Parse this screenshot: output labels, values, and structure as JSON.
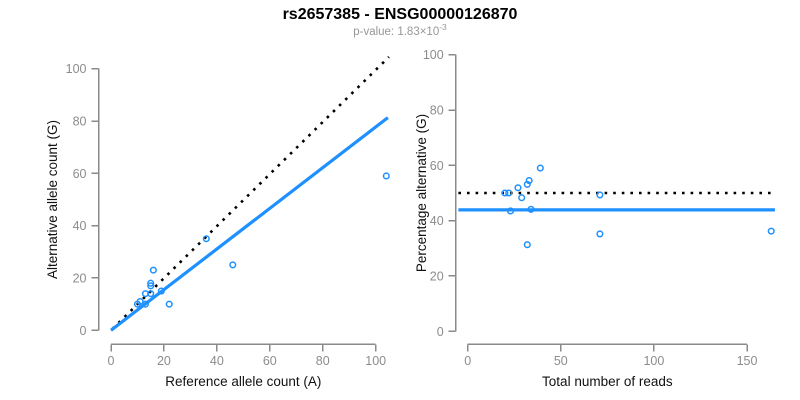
{
  "header": {
    "title": "rs2657385 - ENSG00000126870",
    "subtitle_text": "p-value: 1.83×10",
    "subtitle_exponent": "-3"
  },
  "colors": {
    "accent_blue": "#1E90FF",
    "line_black": "#000000",
    "axis_gray": "#8a8a8a",
    "tick_label_gray": "#8c8c8c",
    "subtitle_gray": "#979797"
  },
  "chart_data": [
    {
      "name": "allele-count-scatter",
      "type": "scatter",
      "xlabel": "Reference allele count (A)",
      "ylabel": "Alternative allele count (G)",
      "xlim": [
        0,
        105
      ],
      "ylim": [
        0,
        105
      ],
      "x_ticks": [
        0,
        20,
        40,
        60,
        80,
        100
      ],
      "y_ticks": [
        0,
        20,
        40,
        60,
        80,
        100
      ],
      "grid": false,
      "legend_position": "none",
      "points": [
        [
          10,
          10
        ],
        [
          11,
          11
        ],
        [
          13,
          10
        ],
        [
          13,
          14
        ],
        [
          15,
          14
        ],
        [
          15,
          17
        ],
        [
          15,
          18
        ],
        [
          16,
          23
        ],
        [
          19,
          15
        ],
        [
          22,
          10
        ],
        [
          36,
          35
        ],
        [
          46,
          25
        ],
        [
          104,
          59
        ]
      ],
      "lines": [
        {
          "name": "identity-line",
          "style": "dotted",
          "color": "#000000",
          "x1": 0.5,
          "y1": 0.5,
          "x2": 105,
          "y2": 104.5
        },
        {
          "name": "fit-line",
          "style": "solid",
          "color": "#1E90FF",
          "x1": 0,
          "y1": 0,
          "x2": 104.6,
          "y2": 81.3
        }
      ]
    },
    {
      "name": "percentage-scatter",
      "type": "scatter",
      "xlabel": "Total number of reads",
      "ylabel": "Percentage alternative (G)",
      "xlim": [
        0,
        165
      ],
      "ylim": [
        0,
        100
      ],
      "x_ticks": [
        0,
        50,
        100,
        150
      ],
      "y_ticks": [
        0,
        20,
        40,
        60,
        80,
        100
      ],
      "grid": false,
      "legend_position": "none",
      "points": [
        [
          20,
          50.0
        ],
        [
          22,
          50.0
        ],
        [
          23,
          43.5
        ],
        [
          27,
          51.9
        ],
        [
          29,
          48.3
        ],
        [
          32,
          53.1
        ],
        [
          33,
          54.5
        ],
        [
          39,
          59.0
        ],
        [
          34,
          44.1
        ],
        [
          32,
          31.3
        ],
        [
          71,
          49.3
        ],
        [
          71,
          35.2
        ],
        [
          163,
          36.2
        ]
      ],
      "lines": [
        {
          "name": "fifty-percent-line",
          "style": "dotted",
          "color": "#000000",
          "x1": -5,
          "y1": 50,
          "x2": 165,
          "y2": 50
        },
        {
          "name": "mean-percentage-line",
          "style": "solid",
          "color": "#1E90FF",
          "x1": -5,
          "y1": 43.9,
          "x2": 165,
          "y2": 43.9
        }
      ]
    }
  ]
}
